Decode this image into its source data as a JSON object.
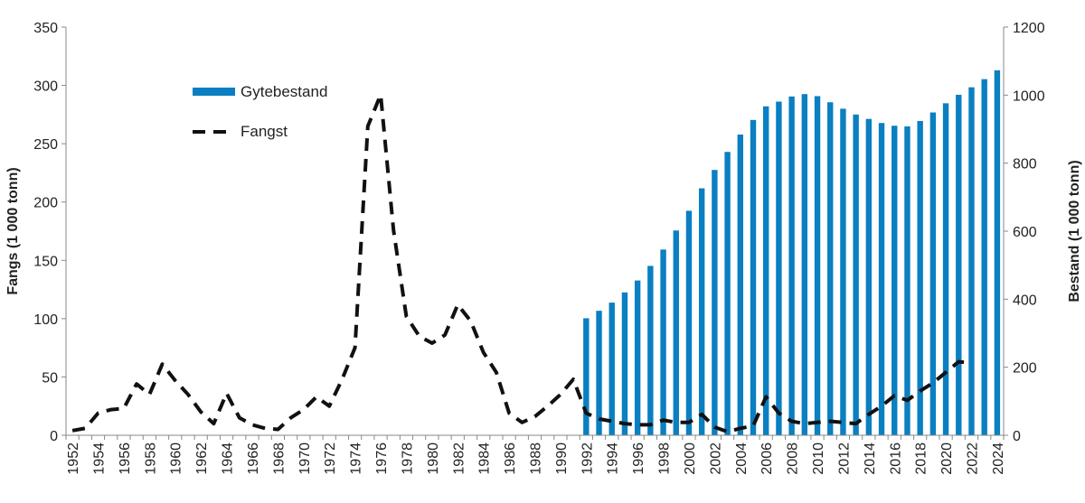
{
  "chart_data": {
    "type": "bar+line",
    "title": "",
    "ylabel_left": "Fangs (1 000 tonn)",
    "ylabel_right": "Bestand (1 000 tonn)",
    "ylim_left": [
      0,
      350
    ],
    "yticks_left": [
      0,
      50,
      100,
      150,
      200,
      250,
      300,
      350
    ],
    "ylim_right": [
      0,
      1200
    ],
    "yticks_right": [
      0,
      200,
      400,
      600,
      800,
      1000,
      1200
    ],
    "x_start": 1952,
    "x_end": 2024,
    "x_label_step": 2,
    "grid": false,
    "legend_placement": "top-left",
    "colors": {
      "bars": "#0a7fc1",
      "line": "#111111"
    },
    "series": [
      {
        "name": "Gytebestand",
        "type": "bar",
        "axis": "right",
        "x": [
          1992,
          1993,
          1994,
          1995,
          1996,
          1997,
          1998,
          1999,
          2000,
          2001,
          2002,
          2003,
          2004,
          2005,
          2006,
          2007,
          2008,
          2009,
          2010,
          2011,
          2012,
          2013,
          2014,
          2015,
          2016,
          2017,
          2018,
          2019,
          2020,
          2021,
          2022,
          2023,
          2024
        ],
        "values": [
          344,
          366,
          390,
          420,
          455,
          498,
          546,
          602,
          660,
          726,
          780,
          833,
          884,
          927,
          967,
          981,
          996,
          1003,
          997,
          979,
          960,
          943,
          930,
          918,
          910,
          908,
          924,
          949,
          976,
          1001,
          1023,
          1047,
          1073
        ]
      },
      {
        "name": "Fangst",
        "type": "line",
        "axis": "left",
        "style": "dashed",
        "x": [
          1952,
          1953,
          1954,
          1955,
          1956,
          1957,
          1958,
          1959,
          1960,
          1961,
          1962,
          1963,
          1964,
          1965,
          1966,
          1967,
          1968,
          1969,
          1970,
          1971,
          1972,
          1973,
          1974,
          1975,
          1976,
          1977,
          1978,
          1979,
          1980,
          1981,
          1982,
          1983,
          1984,
          1985,
          1986,
          1987,
          1988,
          1989,
          1990,
          1991,
          1992,
          1993,
          1994,
          1995,
          1996,
          1997,
          1998,
          1999,
          2000,
          2001,
          2002,
          2003,
          2004,
          2005,
          2006,
          2007,
          2008,
          2009,
          2010,
          2011,
          2012,
          2013,
          2014,
          2015,
          2016,
          2017,
          2018,
          2019,
          2020,
          2021,
          2022
        ],
        "values": [
          4,
          6,
          19,
          22,
          23,
          44,
          35,
          61,
          47,
          35,
          20,
          10,
          36,
          15,
          9,
          6,
          5,
          15,
          22,
          33,
          25,
          48,
          75,
          265,
          292,
          176,
          102,
          85,
          79,
          86,
          112,
          98,
          71,
          54,
          19,
          11,
          16,
          25,
          35,
          48,
          19,
          14,
          12,
          10,
          9,
          9,
          13,
          11,
          11,
          18,
          7,
          3,
          6,
          8,
          33,
          19,
          12,
          10,
          11,
          12,
          11,
          10,
          18,
          25,
          34,
          30,
          38,
          45,
          54,
          63,
          62
        ]
      }
    ]
  }
}
